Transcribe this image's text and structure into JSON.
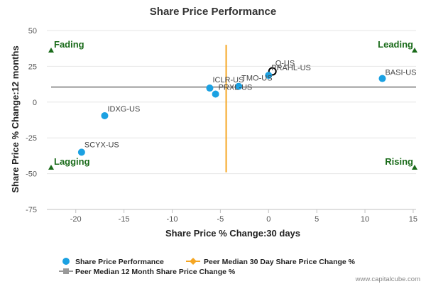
{
  "chart_data": {
    "type": "scatter",
    "title": "Share Price Performance",
    "xlabel": "Share Price % Change:30 days",
    "ylabel": "Share Price % Change:12 months",
    "xlim": [
      -23,
      15.3
    ],
    "ylim": [
      -75,
      50
    ],
    "x_ticks": [
      "-20",
      "-15",
      "-10",
      "-5",
      "0",
      "5",
      "10",
      "15"
    ],
    "x_tick_values": [
      -20,
      -15,
      -10,
      -5,
      0,
      5,
      10,
      15
    ],
    "y_ticks": [
      "50",
      "25",
      "0",
      "-25",
      "-50",
      "-75"
    ],
    "y_tick_values": [
      50,
      25,
      0,
      -25,
      -50,
      -75
    ],
    "series": [
      {
        "name": "Share Price Performance",
        "color": "#1ba1e2",
        "points": [
          {
            "label": "BASI-US",
            "x": 11.8,
            "y": 16.5
          },
          {
            "label": "Q-US",
            "x": 0.4,
            "y": 21.5,
            "highlight": true
          },
          {
            "label": "PRAHL-US",
            "x": 0.0,
            "y": 18.7
          },
          {
            "label": "TMO-US",
            "x": -3.1,
            "y": 11.0
          },
          {
            "label": "ICLR-US",
            "x": -6.1,
            "y": 9.8
          },
          {
            "label": "PRXL-US",
            "x": -5.5,
            "y": 5.6
          },
          {
            "label": "IDXG-US",
            "x": -17.0,
            "y": -9.5
          },
          {
            "label": "SCYX-US",
            "x": -19.4,
            "y": -35.0
          }
        ]
      }
    ],
    "peer_median_30_day": -4.4,
    "peer_median_12_month": 10.5,
    "peer_median_30_day_name": "Peer Median 30 Day Share Price Change %",
    "peer_median_12_month_name": "Peer Median 12 Month Share Price Change %",
    "peer_median_30_day_color": "#f5a623",
    "peer_median_12_month_color": "#999999",
    "quadrant_labels": {
      "top_left": "Fading",
      "top_right": "Leading",
      "bottom_left": "Lagging",
      "bottom_right": "Rising"
    },
    "quadrant_color": "#1a6b1a",
    "credit": "www.capitalcube.com"
  }
}
